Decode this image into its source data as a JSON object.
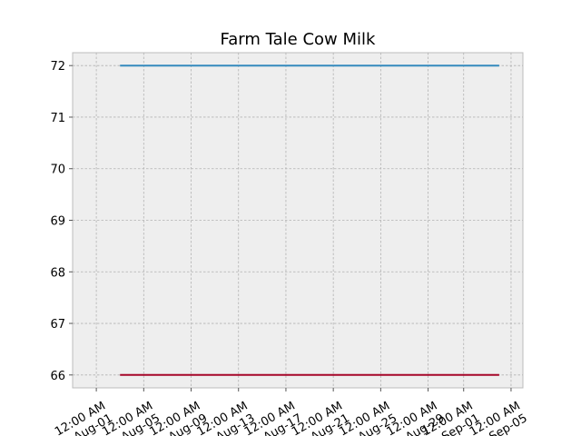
{
  "chart_data": {
    "type": "line",
    "title": "Farm Tale Cow Milk",
    "xlabel": "",
    "ylabel": "",
    "x_type": "date",
    "xlim": [
      "2024-07-30",
      "2024-09-06"
    ],
    "ylim": [
      65.75,
      72.25
    ],
    "x_ticks": [
      {
        "date": "2024-08-01",
        "label": [
          "12:00 AM",
          "Aug-01"
        ]
      },
      {
        "date": "2024-08-05",
        "label": [
          "12:00 AM",
          "Aug-05"
        ]
      },
      {
        "date": "2024-08-09",
        "label": [
          "12:00 AM",
          "Aug-09"
        ]
      },
      {
        "date": "2024-08-13",
        "label": [
          "12:00 AM",
          "Aug-13"
        ]
      },
      {
        "date": "2024-08-17",
        "label": [
          "12:00 AM",
          "Aug-17"
        ]
      },
      {
        "date": "2024-08-21",
        "label": [
          "12:00 AM",
          "Aug-21"
        ]
      },
      {
        "date": "2024-08-25",
        "label": [
          "12:00 AM",
          "Aug-25"
        ]
      },
      {
        "date": "2024-08-29",
        "label": [
          "12:00 AM",
          "Aug-29"
        ]
      },
      {
        "date": "2024-09-01",
        "label": [
          "12:00 AM",
          "Sep-01"
        ]
      },
      {
        "date": "2024-09-05",
        "label": [
          "12:00 AM",
          "Sep-05"
        ]
      }
    ],
    "y_ticks": [
      66,
      67,
      68,
      69,
      70,
      71,
      72
    ],
    "grid": true,
    "series": [
      {
        "color": "#348abd",
        "x": [
          "2024-08-03",
          "2024-09-04"
        ],
        "values": [
          72,
          72
        ]
      },
      {
        "color": "#a60628",
        "x": [
          "2024-08-03",
          "2024-09-04"
        ],
        "values": [
          66,
          66
        ]
      }
    ]
  }
}
